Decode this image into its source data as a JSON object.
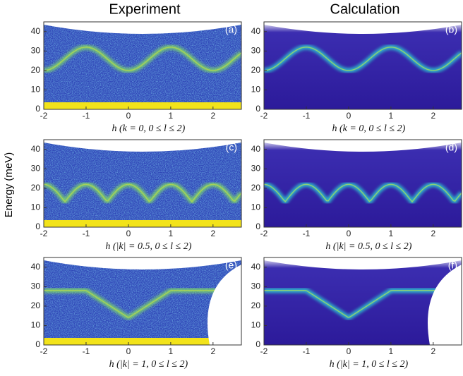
{
  "column_titles": [
    "Experiment",
    "Calculation"
  ],
  "y_label": "Energy (meV)",
  "chart_data": [
    {
      "type": "heatmap",
      "panel_label": "(a)",
      "x_label": "h  (k = 0, 0 ≤ l ≤ 2)",
      "xlim": [
        -2,
        2.67
      ],
      "ylim": [
        0,
        45
      ],
      "xticks": [
        -2,
        -1,
        0,
        1,
        2
      ],
      "yticks": [
        0,
        10,
        20,
        30,
        40
      ]
    },
    {
      "type": "heatmap",
      "panel_label": "(b)",
      "x_label": "h  (k = 0, 0 ≤ l ≤ 2)",
      "xlim": [
        -2,
        2.67
      ],
      "ylim": [
        0,
        45
      ],
      "xticks": [
        -2,
        -1,
        0,
        1,
        2
      ],
      "yticks": [
        0,
        10,
        20,
        30,
        40
      ]
    },
    {
      "type": "heatmap",
      "panel_label": "(c)",
      "x_label": "h  (|k| = 0.5, 0 ≤ l ≤ 2)",
      "xlim": [
        -2,
        2.67
      ],
      "ylim": [
        0,
        45
      ],
      "xticks": [
        -2,
        -1,
        0,
        1,
        2
      ],
      "yticks": [
        0,
        10,
        20,
        30,
        40
      ]
    },
    {
      "type": "heatmap",
      "panel_label": "(d)",
      "x_label": "h  (|k| = 0.5, 0 ≤ l ≤ 2)",
      "xlim": [
        -2,
        2.67
      ],
      "ylim": [
        0,
        45
      ],
      "xticks": [
        -2,
        -1,
        0,
        1,
        2
      ],
      "yticks": [
        0,
        10,
        20,
        30,
        40
      ]
    },
    {
      "type": "heatmap",
      "panel_label": "(e)",
      "x_label": "h  (|k| = 1, 0 ≤ l ≤ 2)",
      "xlim": [
        -2,
        2.67
      ],
      "ylim": [
        0,
        45
      ],
      "xticks": [
        -2,
        -1,
        0,
        1,
        2
      ],
      "yticks": [
        0,
        10,
        20,
        30,
        40
      ]
    },
    {
      "type": "heatmap",
      "panel_label": "(f)",
      "x_label": "h  (|k| = 1, 0 ≤ l ≤ 2)",
      "xlim": [
        -2,
        2.67
      ],
      "ylim": [
        0,
        45
      ],
      "xticks": [
        -2,
        -1,
        0,
        1,
        2
      ],
      "yticks": [
        0,
        10,
        20,
        30,
        40
      ]
    }
  ]
}
